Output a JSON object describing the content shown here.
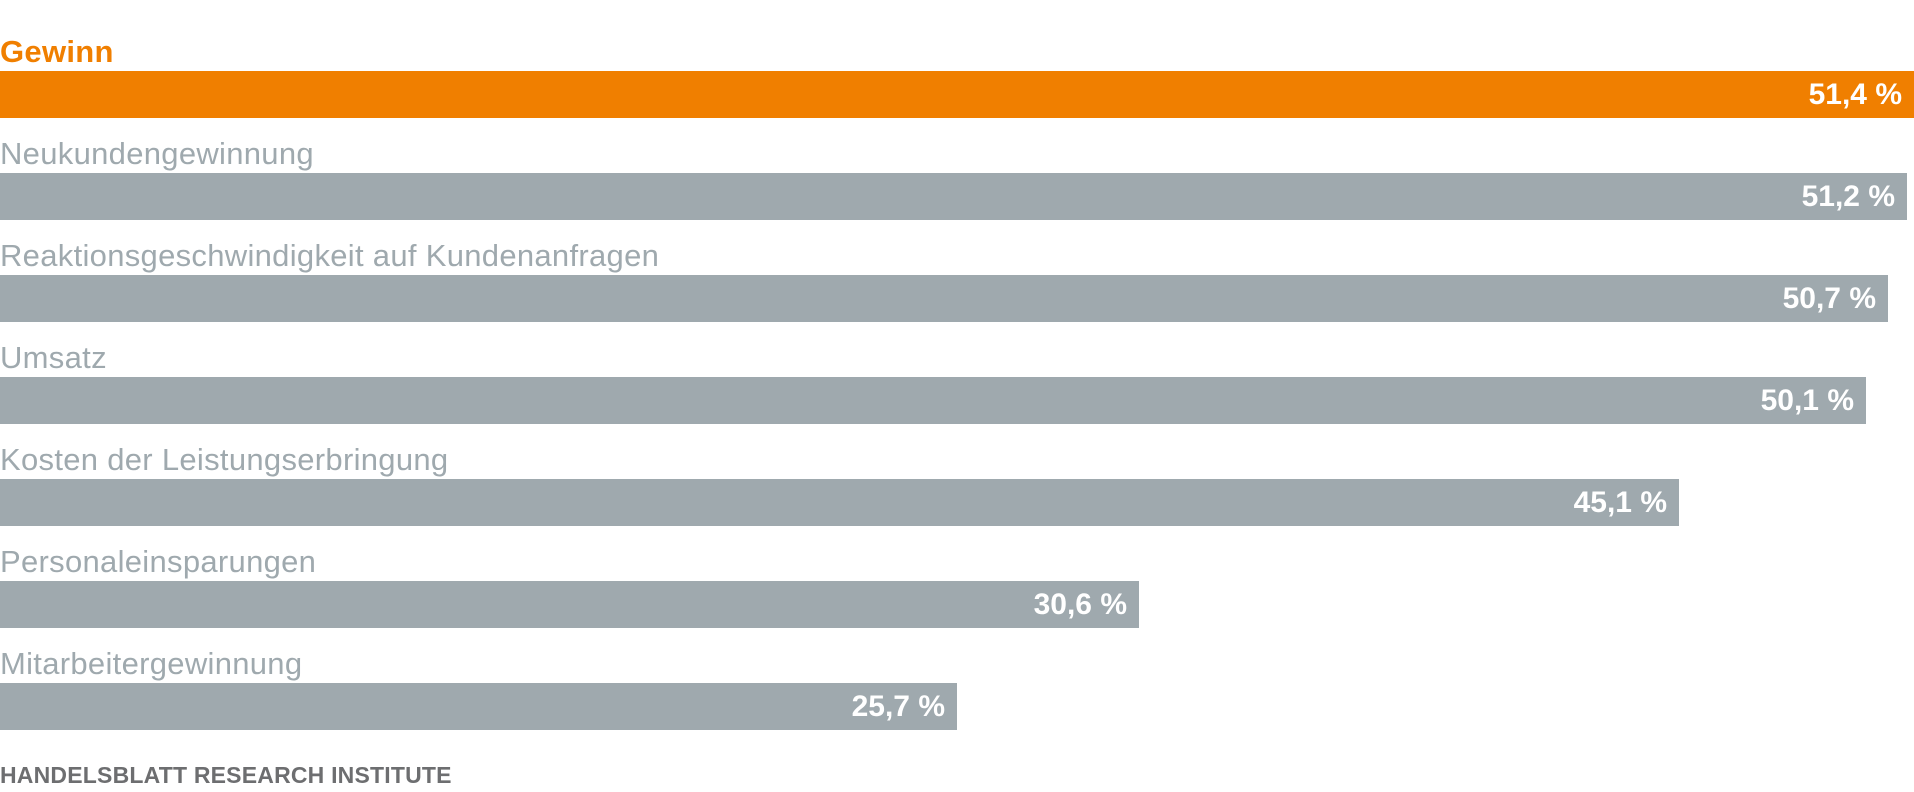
{
  "chart_data": {
    "type": "bar",
    "orientation": "horizontal",
    "categories": [
      "Gewinn",
      "Neukundengewinnung",
      "Reaktionsgeschwindigkeit auf Kundenanfragen",
      "Umsatz",
      "Kosten der Leistungserbringung",
      "Personaleinsparungen",
      "Mitarbeitergewinnung"
    ],
    "values": [
      51.4,
      51.2,
      50.7,
      50.1,
      45.1,
      30.6,
      25.7
    ],
    "value_labels": [
      "51,4 %",
      "51,2 %",
      "50,7 %",
      "50,1 %",
      "45,1 %",
      "30,6 %",
      "25,7 %"
    ],
    "highlight_index": 0,
    "colors": {
      "highlight": "#f07f00",
      "bar": "#9fa9ae",
      "label": "#9fa9ae",
      "value_text": "#ffffff"
    },
    "xlim": [
      0,
      51.4
    ],
    "grid": false,
    "legend": "none"
  },
  "source": "HANDELSBLATT RESEARCH INSTITUTE"
}
